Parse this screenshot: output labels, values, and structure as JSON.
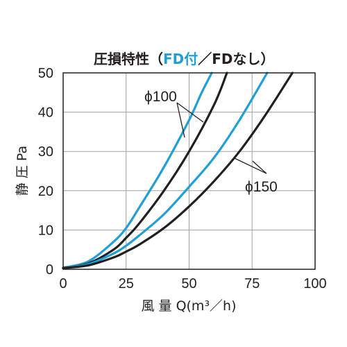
{
  "chart_data": {
    "type": "line",
    "title": {
      "main": "圧損特性",
      "open_paren": "（",
      "fd_with": "FD付",
      "slash": "／",
      "fd_without": "FDなし",
      "close_paren": "）"
    },
    "xlabel": "風 量 Q(m³／h)",
    "ylabel": "静 圧 Pa",
    "xlim": [
      0,
      100
    ],
    "ylim": [
      0,
      50
    ],
    "xticks": [
      0,
      25,
      50,
      75,
      100
    ],
    "yticks": [
      0,
      10,
      20,
      30,
      40,
      50
    ],
    "grid": true,
    "colors": {
      "with_fd": "#1e9fd6",
      "without_fd": "#231f20",
      "grid": "#9d9fa2",
      "axis": "#231f20"
    },
    "annotations": [
      {
        "text": "ϕ100",
        "points_to": [
          "φ100 FD付",
          "φ100 FDなし"
        ]
      },
      {
        "text": "ϕ150",
        "points_to": [
          "φ150 FD付",
          "φ150 FDなし"
        ]
      }
    ],
    "series": [
      {
        "group": "φ100",
        "variant": "FD付",
        "color": "#1e9fd6",
        "x": [
          0,
          10,
          20,
          25,
          30,
          40,
          50,
          55,
          59
        ],
        "y": [
          0.4,
          2,
          7,
          10.5,
          15.5,
          26,
          38,
          45,
          50
        ]
      },
      {
        "group": "φ100",
        "variant": "FDなし",
        "color": "#231f20",
        "x": [
          0,
          10,
          20,
          25,
          30,
          40,
          50,
          60,
          65
        ],
        "y": [
          0.3,
          1.5,
          5,
          8,
          11.5,
          20,
          30,
          42,
          50
        ]
      },
      {
        "group": "φ150",
        "variant": "FD付",
        "color": "#1e9fd6",
        "x": [
          0,
          10,
          20,
          25,
          30,
          40,
          50,
          60,
          70,
          81
        ],
        "y": [
          0.4,
          1.3,
          4,
          6,
          8.5,
          14,
          21,
          28.5,
          38,
          50
        ]
      },
      {
        "group": "φ150",
        "variant": "FDなし",
        "color": "#231f20",
        "x": [
          0,
          10,
          20,
          25,
          30,
          40,
          50,
          60,
          70,
          80,
          91
        ],
        "y": [
          0.3,
          1,
          3,
          4.5,
          6.2,
          10.5,
          16,
          22.5,
          30,
          39,
          50
        ]
      }
    ]
  }
}
